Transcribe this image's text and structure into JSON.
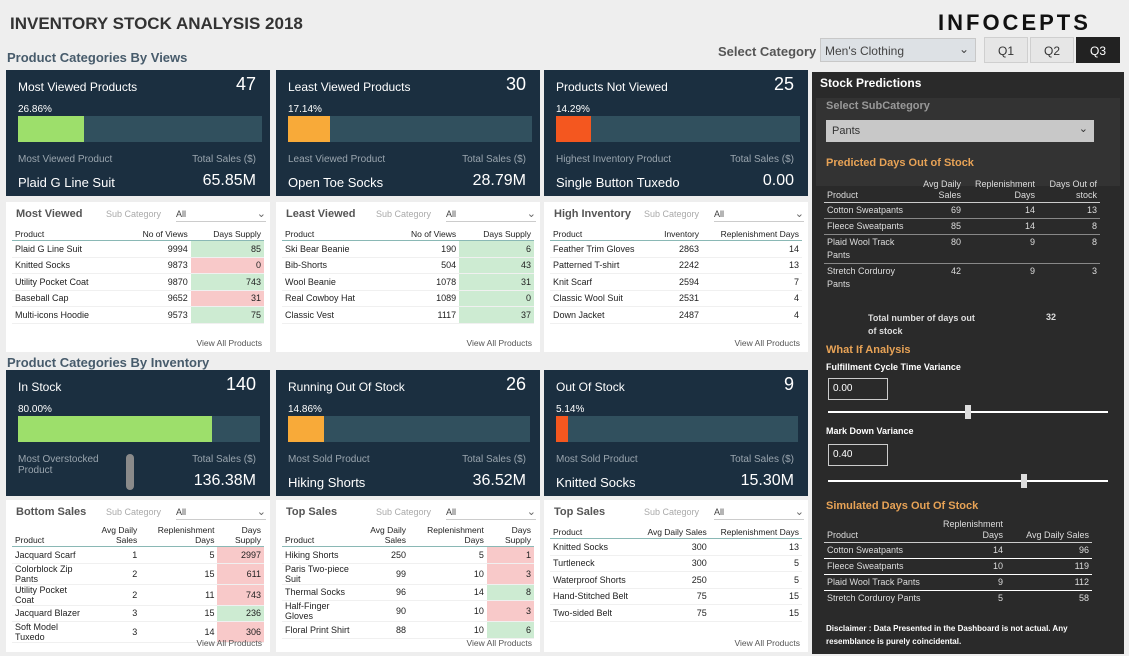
{
  "header": {
    "title": "INVENTORY STOCK ANALYSIS 2018",
    "logo": "InfoCepts",
    "select_category_label": "Select Category",
    "category_value": "Men's Clothing",
    "quarters": [
      "Q1",
      "Q2",
      "Q3"
    ],
    "active_quarter": "Q3"
  },
  "sections": {
    "views": "Product Categories By Views",
    "inventory": "Product Categories By Inventory"
  },
  "view_cards": [
    {
      "title": "Most Viewed Products",
      "count": "47",
      "percent": "26.86%",
      "pct_value": 26.86,
      "color": "#9ddf6b",
      "left_label": "Most Viewed Product",
      "right_label": "Total Sales ($)",
      "product": "Plaid G Line Suit",
      "value": "65.85M"
    },
    {
      "title": "Least Viewed Products",
      "count": "30",
      "percent": "17.14%",
      "pct_value": 17.14,
      "color": "#f8aa39",
      "left_label": "Least Viewed Product",
      "right_label": "Total Sales ($)",
      "product": "Open Toe Socks",
      "value": "28.79M"
    },
    {
      "title": "Products Not Viewed",
      "count": "25",
      "percent": "14.29%",
      "pct_value": 14.29,
      "color": "#f4571f",
      "left_label": "Highest Inventory Product",
      "right_label": "Total Sales ($)",
      "product": "Single Button Tuxedo",
      "value": "0.00"
    }
  ],
  "inventory_cards": [
    {
      "title": "In Stock",
      "count": "140",
      "percent": "80.00%",
      "pct_value": 80,
      "color": "#9ddf6b",
      "left_label": "Most Overstocked Product",
      "right_label": "Total Sales ($)",
      "product": "",
      "value": "136.38M"
    },
    {
      "title": "Running Out Of Stock",
      "count": "26",
      "percent": "14.86%",
      "pct_value": 14.86,
      "color": "#f8aa39",
      "left_label": "Most Sold Product",
      "right_label": "Total Sales ($)",
      "product": "Hiking Shorts",
      "value": "36.52M"
    },
    {
      "title": "Out Of Stock",
      "count": "9",
      "percent": "5.14%",
      "pct_value": 5.14,
      "color": "#f4571f",
      "left_label": "Most Sold Product",
      "right_label": "Total Sales ($)",
      "product": "Knitted Socks",
      "value": "15.30M"
    }
  ],
  "tables_top": [
    {
      "title": "Most Viewed",
      "sub_label": "Sub Category",
      "sub_value": "All",
      "headers": [
        "Product",
        "No of Views",
        "Days Supply"
      ],
      "rows": [
        [
          "Plaid G Line Suit",
          "9994",
          "85",
          "g"
        ],
        [
          "Knitted Socks",
          "9873",
          "0",
          "r"
        ],
        [
          "Utility Pocket Coat",
          "9870",
          "743",
          "g"
        ],
        [
          "Baseball Cap",
          "9652",
          "31",
          "r"
        ],
        [
          "Multi-icons Hoodie",
          "9573",
          "75",
          "g"
        ]
      ],
      "view_all": "View All Products"
    },
    {
      "title": "Least Viewed",
      "sub_label": "Sub Category",
      "sub_value": "All",
      "headers": [
        "Product",
        "No of Views",
        "Days Supply"
      ],
      "rows": [
        [
          "Ski Bear Beanie",
          "190",
          "6",
          "g"
        ],
        [
          "Bib-Shorts",
          "504",
          "43",
          "g"
        ],
        [
          "Wool Beanie",
          "1078",
          "31",
          "g"
        ],
        [
          "Real Cowboy Hat",
          "1089",
          "0",
          "g"
        ],
        [
          "Classic Vest",
          "1117",
          "37",
          "g"
        ]
      ],
      "view_all": "View All Products"
    },
    {
      "title": "High Inventory",
      "sub_label": "Sub Category",
      "sub_value": "All",
      "headers": [
        "Product",
        "Inventory",
        "Replenishment Days"
      ],
      "rows": [
        [
          "Feather Trim Gloves",
          "2863",
          "14",
          ""
        ],
        [
          "Patterned T-shirt",
          "2242",
          "13",
          ""
        ],
        [
          "Knit Scarf",
          "2594",
          "7",
          ""
        ],
        [
          "Classic Wool Suit",
          "2531",
          "4",
          ""
        ],
        [
          "Down Jacket",
          "2487",
          "4",
          ""
        ]
      ],
      "view_all": "View All Products"
    }
  ],
  "tables_bottom": [
    {
      "title": "Bottom Sales",
      "sub_label": "Sub Category",
      "sub_value": "All",
      "headers": [
        "Product",
        "Avg Daily Sales",
        "Replenishment Days",
        "Days Supply"
      ],
      "rows": [
        [
          "Jacquard Scarf",
          "1",
          "5",
          "2997",
          "r"
        ],
        [
          "Colorblock Zip Pants",
          "2",
          "15",
          "611",
          "r"
        ],
        [
          "Utility Pocket Coat",
          "2",
          "11",
          "743",
          "r"
        ],
        [
          "Jacquard Blazer",
          "3",
          "15",
          "236",
          "g"
        ],
        [
          "Soft Model Tuxedo",
          "3",
          "14",
          "306",
          "r"
        ]
      ],
      "view_all": "View All Products"
    },
    {
      "title": "Top Sales",
      "sub_label": "Sub Category",
      "sub_value": "All",
      "headers": [
        "Product",
        "Avg Daily Sales",
        "Replenishment Days",
        "Days Supply"
      ],
      "rows": [
        [
          "Hiking Shorts",
          "250",
          "5",
          "1",
          "r"
        ],
        [
          "Paris Two-piece Suit",
          "99",
          "10",
          "3",
          "r"
        ],
        [
          "Thermal Socks",
          "96",
          "14",
          "8",
          "g"
        ],
        [
          "Half-Finger Gloves",
          "90",
          "10",
          "3",
          "r"
        ],
        [
          "Floral Print Shirt",
          "88",
          "10",
          "6",
          "g"
        ]
      ],
      "view_all": "View All Products"
    },
    {
      "title": "Top Sales",
      "sub_label": "Sub Category",
      "sub_value": "All",
      "headers": [
        "Product",
        "Avg Daily Sales",
        "Replenishment Days"
      ],
      "rows": [
        [
          "Knitted Socks",
          "300",
          "13",
          ""
        ],
        [
          "Turtleneck",
          "300",
          "5",
          ""
        ],
        [
          "Waterproof Shorts",
          "250",
          "5",
          ""
        ],
        [
          "Hand-Stitched Belt",
          "75",
          "15",
          ""
        ],
        [
          "Two-sided Belt",
          "75",
          "15",
          ""
        ]
      ],
      "view_all": "View All Products"
    }
  ],
  "predictions": {
    "title": "Stock Predictions",
    "subcat_label": "Select SubCategory",
    "subcat_value": "Pants",
    "pred_title": "Predicted Days Out of Stock",
    "pred_headers": [
      "Product",
      "Avg Daily Sales",
      "Replenishment Days",
      "Days Out of stock"
    ],
    "pred_rows": [
      [
        "Cotton Sweatpants",
        "69",
        "14",
        "13"
      ],
      [
        "Fleece Sweatpants",
        "85",
        "14",
        "8"
      ],
      [
        "Plaid Wool Track Pants",
        "80",
        "9",
        "8"
      ],
      [
        "Stretch Corduroy Pants",
        "42",
        "9",
        "3"
      ]
    ],
    "total_label": "Total number of days out of stock",
    "total_value": "32",
    "whatif_title": "What If Analysis",
    "fc_label": "Fulfillment Cycle Time Variance",
    "fc_value": "0.00",
    "fc_slider": 0.5,
    "md_label": "Mark Down Variance",
    "md_value": "0.40",
    "md_slider": 0.7,
    "sim_title": "Simulated Days Out Of Stock",
    "sim_headers": [
      "Product",
      "Replenishment Days",
      "Avg Daily Sales"
    ],
    "sim_rows": [
      [
        "Cotton Sweatpants",
        "14",
        "96"
      ],
      [
        "Fleece Sweatpants",
        "10",
        "119"
      ],
      [
        "Plaid Wool Track Pants",
        "9",
        "112"
      ],
      [
        "Stretch Corduroy Pants",
        "5",
        "58"
      ]
    ],
    "disclaimer": "Disclaimer : Data Presented in the Dashboard is not actual. Any resemblance is purely coincidental."
  }
}
